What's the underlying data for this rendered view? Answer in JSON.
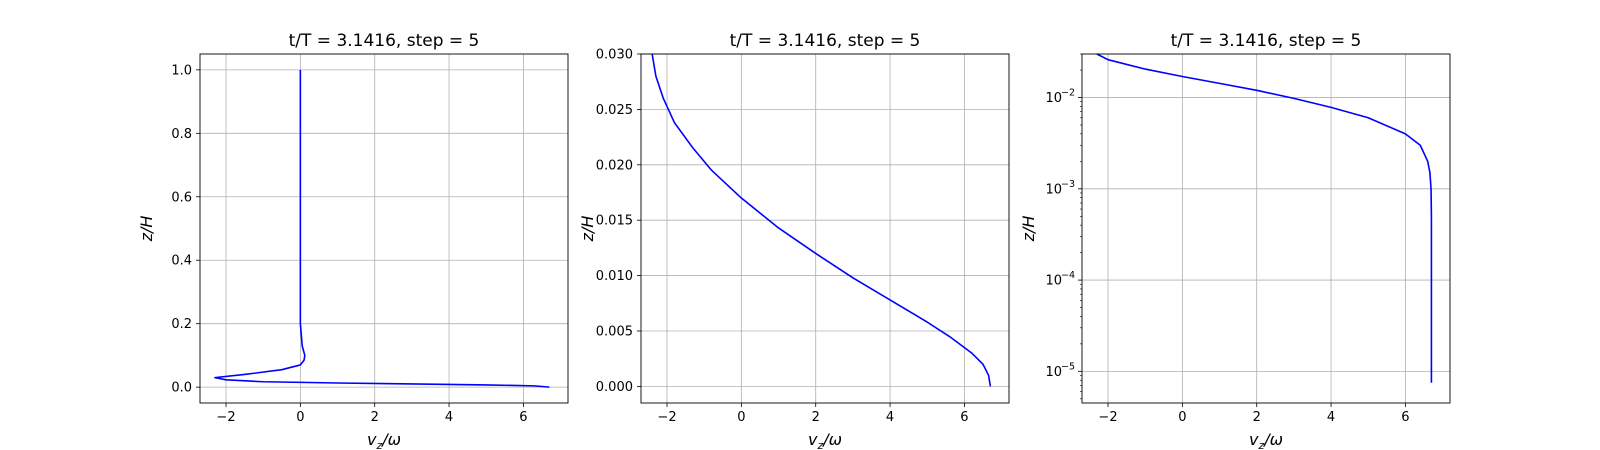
{
  "chart_data": [
    {
      "type": "line",
      "title": "t/T = 3.1416, step = 5",
      "xlabel": "v_z/ω",
      "ylabel": "z/H",
      "xlim": [
        -2.7,
        7.2
      ],
      "ylim": [
        -0.05,
        1.05
      ],
      "yscale": "linear",
      "xticks": [
        -2,
        0,
        2,
        4,
        6
      ],
      "xtick_labels": [
        "−2",
        "0",
        "2",
        "4",
        "6"
      ],
      "yticks": [
        0.0,
        0.2,
        0.4,
        0.6,
        0.8,
        1.0
      ],
      "ytick_labels": [
        "0.0",
        "0.2",
        "0.4",
        "0.6",
        "0.8",
        "1.0"
      ],
      "grid": true,
      "series": [
        {
          "color": "#0000ff",
          "x": [
            6.7,
            6.3,
            5.0,
            3.0,
            1.0,
            -1.0,
            -2.0,
            -2.3,
            -1.5,
            -0.5,
            0.0,
            0.1,
            0.12,
            0.05,
            0.0,
            0.0,
            0.0
          ],
          "y": [
            0.0,
            0.004,
            0.007,
            0.01,
            0.013,
            0.017,
            0.023,
            0.03,
            0.04,
            0.055,
            0.07,
            0.085,
            0.1,
            0.13,
            0.2,
            0.6,
            1.0
          ]
        }
      ]
    },
    {
      "type": "line",
      "title": "t/T = 3.1416, step = 5",
      "xlabel": "v_z/ω",
      "ylabel": "z/H",
      "xlim": [
        -2.7,
        7.2
      ],
      "ylim": [
        -0.0015,
        0.03
      ],
      "yscale": "linear",
      "xticks": [
        -2,
        0,
        2,
        4,
        6
      ],
      "xtick_labels": [
        "−2",
        "0",
        "2",
        "4",
        "6"
      ],
      "yticks": [
        0.0,
        0.005,
        0.01,
        0.015,
        0.02,
        0.025,
        0.03
      ],
      "ytick_labels": [
        "0.000",
        "0.005",
        "0.010",
        "0.015",
        "0.020",
        "0.025",
        "0.030"
      ],
      "grid": true,
      "series": [
        {
          "color": "#0000ff",
          "x": [
            6.7,
            6.65,
            6.5,
            6.2,
            5.6,
            5.0,
            4.0,
            3.0,
            2.0,
            1.0,
            0.0,
            -0.8,
            -1.3,
            -1.8,
            -2.1,
            -2.3,
            -2.4
          ],
          "y": [
            0.0,
            0.001,
            0.002,
            0.003,
            0.0045,
            0.0058,
            0.0078,
            0.0098,
            0.012,
            0.0143,
            0.017,
            0.0195,
            0.0215,
            0.0238,
            0.026,
            0.028,
            0.03
          ]
        }
      ]
    },
    {
      "type": "line",
      "title": "t/T = 3.1416, step = 5",
      "xlabel": "v_z/ω",
      "ylabel": "z/H",
      "xlim": [
        -2.7,
        7.2
      ],
      "ylim": [
        4.5e-06,
        0.03
      ],
      "yscale": "log",
      "xticks": [
        -2,
        0,
        2,
        4,
        6
      ],
      "xtick_labels": [
        "−2",
        "0",
        "2",
        "4",
        "6"
      ],
      "yticks": [
        1e-05,
        0.0001,
        0.001,
        0.01
      ],
      "ytick_labels": [
        "10",
        "10",
        "10",
        "10"
      ],
      "ytick_exponents": [
        "−5",
        "−4",
        "−3",
        "−2"
      ],
      "grid": true,
      "series": [
        {
          "color": "#0000ff",
          "x": [
            6.7,
            6.7,
            6.7,
            6.69,
            6.66,
            6.6,
            6.4,
            6.0,
            5.0,
            4.0,
            3.0,
            2.0,
            1.0,
            0.0,
            -1.0,
            -2.0,
            -2.3
          ],
          "y": [
            7.5e-06,
            0.0001,
            0.0005,
            0.001,
            0.0015,
            0.002,
            0.003,
            0.004,
            0.006,
            0.0078,
            0.0098,
            0.012,
            0.0143,
            0.017,
            0.0205,
            0.026,
            0.03
          ]
        }
      ]
    }
  ]
}
